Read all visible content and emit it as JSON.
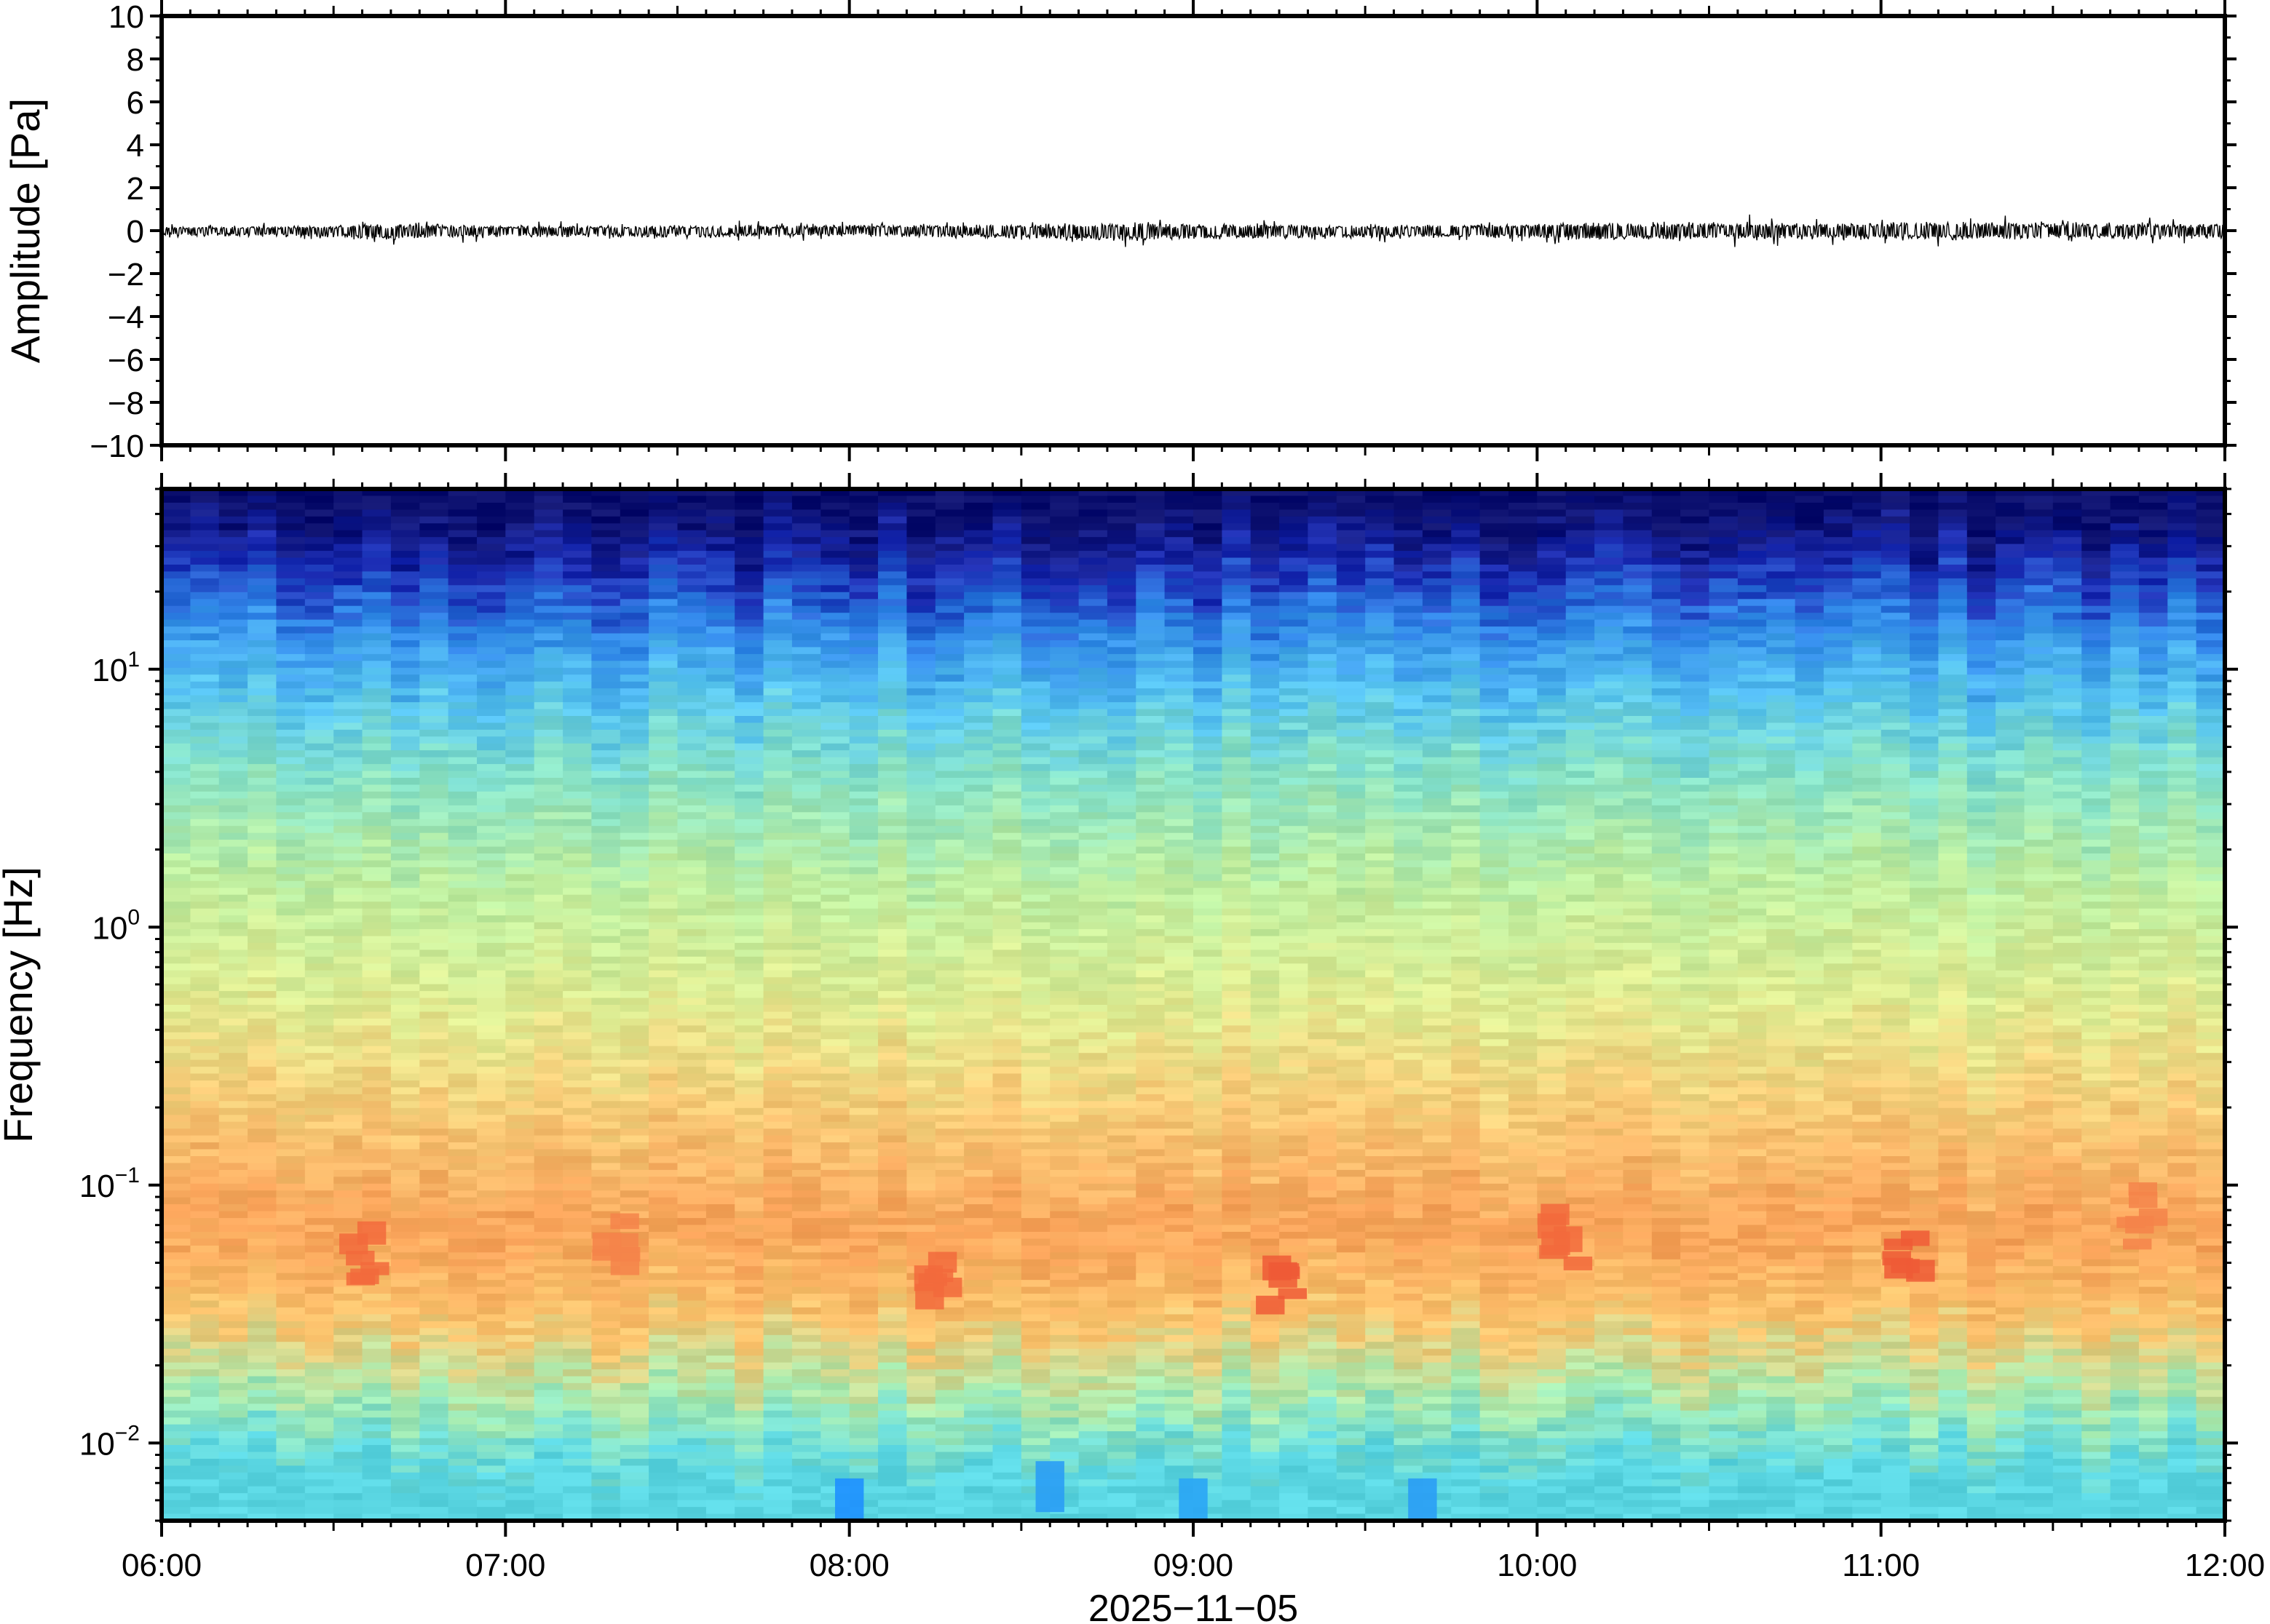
{
  "chart_data": [
    {
      "type": "line",
      "title": "",
      "xlabel": "",
      "ylabel": "Amplitude [Pa]",
      "ylim": [
        -10,
        10
      ],
      "ytick_values": [
        10,
        8,
        6,
        4,
        2,
        0,
        -2,
        -4,
        -6,
        -8,
        -10
      ],
      "ytick_labels": [
        "10",
        "8",
        "6",
        "4",
        "2",
        "0",
        "−2",
        "−4",
        "−6",
        "−8",
        "−10"
      ],
      "xlim": [
        "2025-11-05 06:00",
        "2025-11-05 12:00"
      ],
      "series": [
        {
          "color": "#000000",
          "x": [
            "06:00",
            "06:30",
            "06:35",
            "07:00",
            "07:30",
            "08:00",
            "08:30",
            "08:50",
            "09:00",
            "09:30",
            "10:00",
            "10:10",
            "10:30",
            "11:00",
            "11:05",
            "11:30",
            "12:00"
          ],
          "envelope_min": [
            -0.5,
            -0.7,
            -1.1,
            -0.6,
            -0.7,
            -0.6,
            -0.8,
            -1.2,
            -0.9,
            -0.7,
            -0.8,
            -1.0,
            -0.9,
            -0.9,
            -1.0,
            -0.8,
            -0.9
          ],
          "envelope_max": [
            0.4,
            0.5,
            0.7,
            0.5,
            0.5,
            0.6,
            0.6,
            0.8,
            0.7,
            0.5,
            0.7,
            0.9,
            0.8,
            0.8,
            1.0,
            0.8,
            0.7
          ]
        }
      ]
    },
    {
      "type": "heatmap",
      "title": "",
      "xlabel": "2025−11−05",
      "ylabel": "Frequency [Hz]",
      "yscale": "log",
      "ylim": [
        0.005,
        50
      ],
      "ytick_values": [
        0.01,
        0.1,
        1,
        10
      ],
      "ytick_labels": [
        {
          "base": "10",
          "exp": "−2"
        },
        {
          "base": "10",
          "exp": "−1"
        },
        {
          "base": "10",
          "exp": "0"
        },
        {
          "base": "10",
          "exp": "1"
        }
      ],
      "xlim": [
        "06:00",
        "12:00"
      ],
      "xtick_labels": [
        "06:00",
        "07:00",
        "08:00",
        "09:00",
        "10:00",
        "11:00",
        "12:00"
      ],
      "colormap": "jet",
      "bands": [
        {
          "freq_hz": 40,
          "color": "#0b0f6e"
        },
        {
          "freq_hz": 25,
          "color": "#1a2bb3"
        },
        {
          "freq_hz": 15,
          "color": "#2f86e8"
        },
        {
          "freq_hz": 8,
          "color": "#56c4f0"
        },
        {
          "freq_hz": 4,
          "color": "#86e2c8"
        },
        {
          "freq_hz": 1.5,
          "color": "#bdeea0"
        },
        {
          "freq_hz": 0.5,
          "color": "#e0ec92"
        },
        {
          "freq_hz": 0.2,
          "color": "#f7cc78"
        },
        {
          "freq_hz": 0.07,
          "color": "#f9a259"
        },
        {
          "freq_hz": 0.03,
          "color": "#fbc56e"
        },
        {
          "freq_hz": 0.015,
          "color": "#a8ecb0"
        },
        {
          "freq_hz": 0.008,
          "color": "#5ad6e2"
        }
      ],
      "hotspots": [
        {
          "time": "06:35",
          "freq_hz": 0.05,
          "color": "#f26a3c"
        },
        {
          "time": "07:20",
          "freq_hz": 0.06,
          "color": "#f4844a"
        },
        {
          "time": "08:15",
          "freq_hz": 0.045,
          "color": "#f26a3c"
        },
        {
          "time": "09:15",
          "freq_hz": 0.04,
          "color": "#ef5a36"
        },
        {
          "time": "10:05",
          "freq_hz": 0.06,
          "color": "#f26a3c"
        },
        {
          "time": "11:05",
          "freq_hz": 0.055,
          "color": "#ef5a36"
        },
        {
          "time": "11:45",
          "freq_hz": 0.07,
          "color": "#f4844a"
        }
      ],
      "lowfreq_blue_spots": [
        {
          "time": "08:00",
          "freq_hz": 0.006,
          "color": "#1e90ff"
        },
        {
          "time": "08:35",
          "freq_hz": 0.007,
          "color": "#2a9df5"
        },
        {
          "time": "09:00",
          "freq_hz": 0.006,
          "color": "#2aa5f5"
        },
        {
          "time": "09:40",
          "freq_hz": 0.006,
          "color": "#2a9df5"
        }
      ]
    }
  ]
}
